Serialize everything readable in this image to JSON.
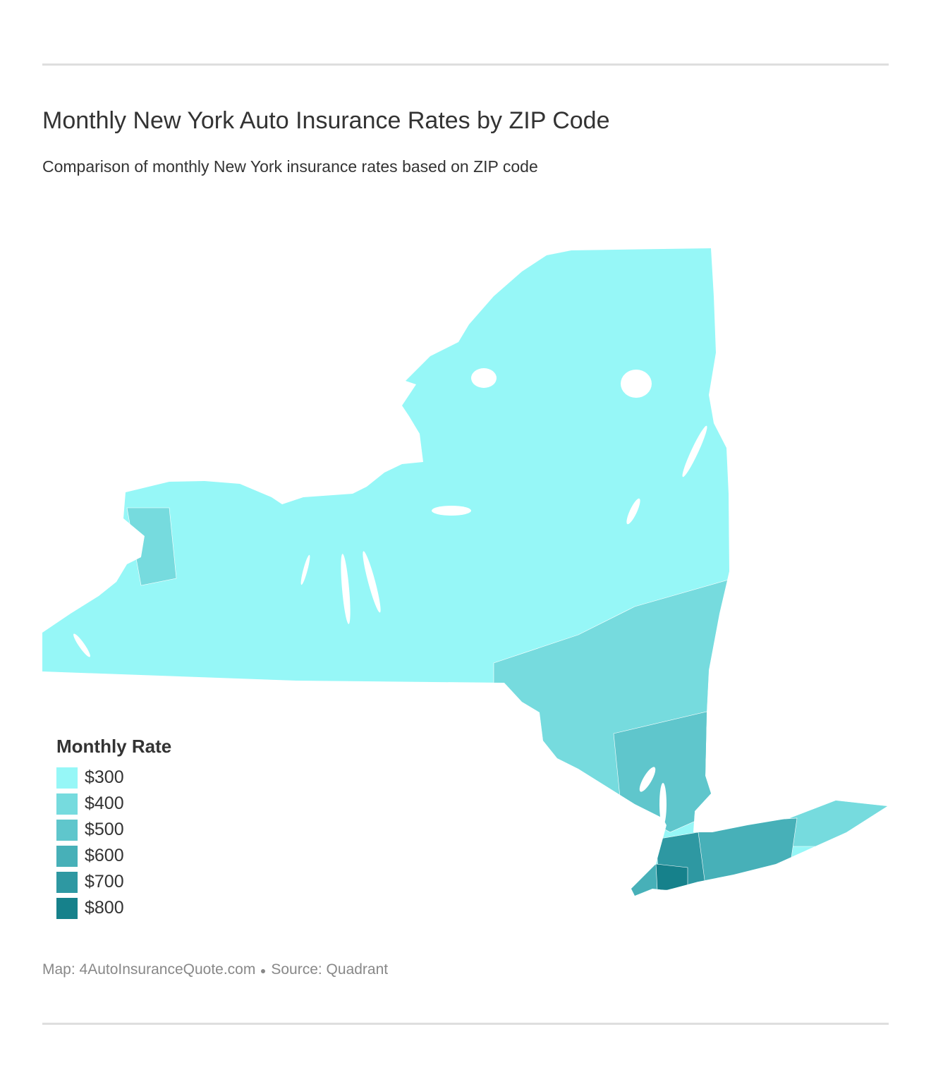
{
  "header": {
    "title": "Monthly New York Auto Insurance Rates by ZIP Code",
    "subtitle": "Comparison of monthly New York insurance rates based on ZIP code"
  },
  "legend": {
    "title": "Monthly Rate",
    "items": [
      {
        "label": "$300",
        "color": "#96f7f7"
      },
      {
        "label": "$400",
        "color": "#76dbde"
      },
      {
        "label": "$500",
        "color": "#5fc6cc"
      },
      {
        "label": "$600",
        "color": "#47b0b8"
      },
      {
        "label": "$700",
        "color": "#2e98a2"
      },
      {
        "label": "$800",
        "color": "#16818b"
      }
    ]
  },
  "footer": {
    "credit": "Map: 4AutoInsuranceQuote.com",
    "source": "Source: Quadrant"
  }
}
